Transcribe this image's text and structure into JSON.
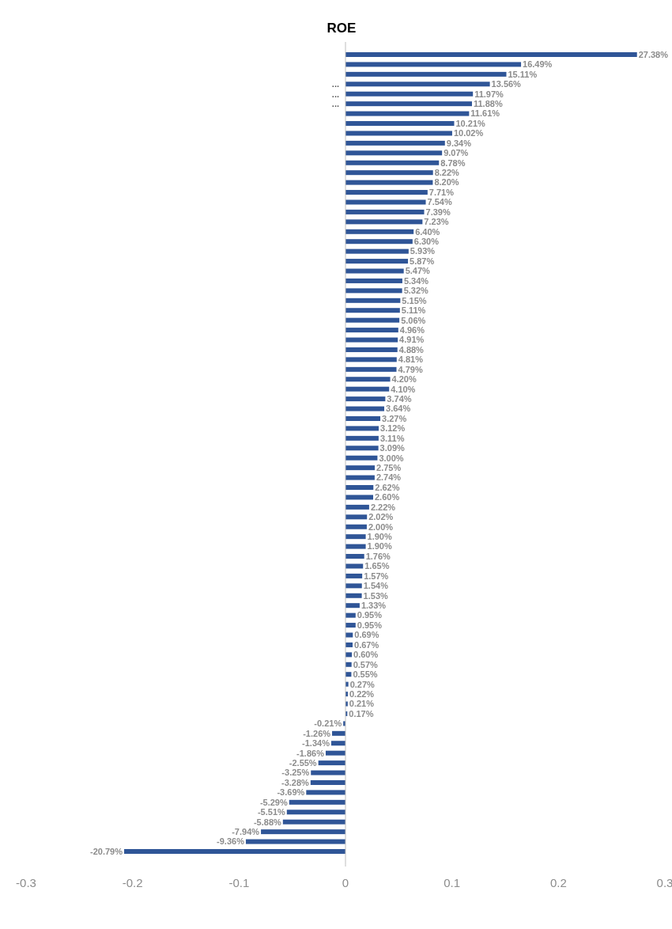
{
  "chart_data": {
    "type": "bar",
    "orientation": "horizontal",
    "title": "ROE",
    "categories": [
      null,
      null,
      null,
      "...",
      "...",
      "...",
      null,
      null,
      null,
      null,
      null,
      null,
      null,
      null,
      null,
      null,
      null,
      null,
      null,
      null,
      null,
      null,
      null,
      null,
      null,
      null,
      null,
      null,
      null,
      null,
      null,
      null,
      null,
      null,
      null,
      null,
      null,
      null,
      null,
      null,
      null,
      null,
      null,
      null,
      null,
      null,
      null,
      null,
      null,
      null,
      null,
      null,
      null,
      null,
      null,
      null,
      null,
      null,
      null,
      null,
      null,
      null,
      null,
      null,
      null,
      null,
      null,
      null,
      null,
      null,
      null,
      null,
      null,
      null,
      null,
      null,
      null,
      null,
      null,
      null,
      null,
      null
    ],
    "values": [
      0.2738,
      0.1649,
      0.1511,
      0.1356,
      0.1197,
      0.1188,
      0.1161,
      0.1021,
      0.1002,
      0.0934,
      0.0907,
      0.0878,
      0.0822,
      0.082,
      0.0771,
      0.0754,
      0.0739,
      0.0723,
      0.064,
      0.063,
      0.0593,
      0.0587,
      0.0547,
      0.0534,
      0.0532,
      0.0515,
      0.0511,
      0.0506,
      0.0496,
      0.0491,
      0.0488,
      0.0481,
      0.0479,
      0.042,
      0.041,
      0.0374,
      0.0364,
      0.0327,
      0.0312,
      0.0311,
      0.0309,
      0.03,
      0.0275,
      0.0274,
      0.0262,
      0.026,
      0.0222,
      0.0202,
      0.02,
      0.019,
      0.019,
      0.0176,
      0.0165,
      0.0157,
      0.0154,
      0.0153,
      0.0133,
      0.0095,
      0.0095,
      0.0069,
      0.0067,
      0.006,
      0.0057,
      0.0055,
      0.0027,
      0.0022,
      0.0021,
      0.0017,
      -0.0021,
      -0.0126,
      -0.0134,
      -0.0186,
      -0.0255,
      -0.0325,
      -0.0328,
      -0.0369,
      -0.0529,
      -0.0551,
      -0.0588,
      -0.0794,
      -0.0936,
      -0.2079
    ],
    "value_labels": [
      "27.38%",
      "16.49%",
      "15.11%",
      "13.56%",
      "11.97%",
      "11.88%",
      "11.61%",
      "10.21%",
      "10.02%",
      "9.34%",
      "9.07%",
      "8.78%",
      "8.22%",
      "8.20%",
      "7.71%",
      "7.54%",
      "7.39%",
      "7.23%",
      "6.40%",
      "6.30%",
      "5.93%",
      "5.87%",
      "5.47%",
      "5.34%",
      "5.32%",
      "5.15%",
      "5.11%",
      "5.06%",
      "4.96%",
      "4.91%",
      "4.88%",
      "4.81%",
      "4.79%",
      "4.20%",
      "4.10%",
      "3.74%",
      "3.64%",
      "3.27%",
      "3.12%",
      "3.11%",
      "3.09%",
      "3.00%",
      "2.75%",
      "2.74%",
      "2.62%",
      "2.60%",
      "2.22%",
      "2.02%",
      "2.00%",
      "1.90%",
      "1.90%",
      "1.76%",
      "1.65%",
      "1.57%",
      "1.54%",
      "1.53%",
      "1.33%",
      "0.95%",
      "0.95%",
      "0.69%",
      "0.67%",
      "0.60%",
      "0.57%",
      "0.55%",
      "0.27%",
      "0.22%",
      "0.21%",
      "0.17%",
      "-0.21%",
      "-1.26%",
      "-1.34%",
      "-1.86%",
      "-2.55%",
      "-3.25%",
      "-3.28%",
      "-3.69%",
      "-5.29%",
      "-5.51%",
      "-5.88%",
      "-7.94%",
      "-9.36%",
      "-20.79%"
    ],
    "color": "#2f5597",
    "xlim": [
      -0.3,
      0.3
    ],
    "xticks": [
      -0.3,
      -0.2,
      -0.1,
      0,
      0.1,
      0.2,
      0.3
    ],
    "grid": false
  }
}
